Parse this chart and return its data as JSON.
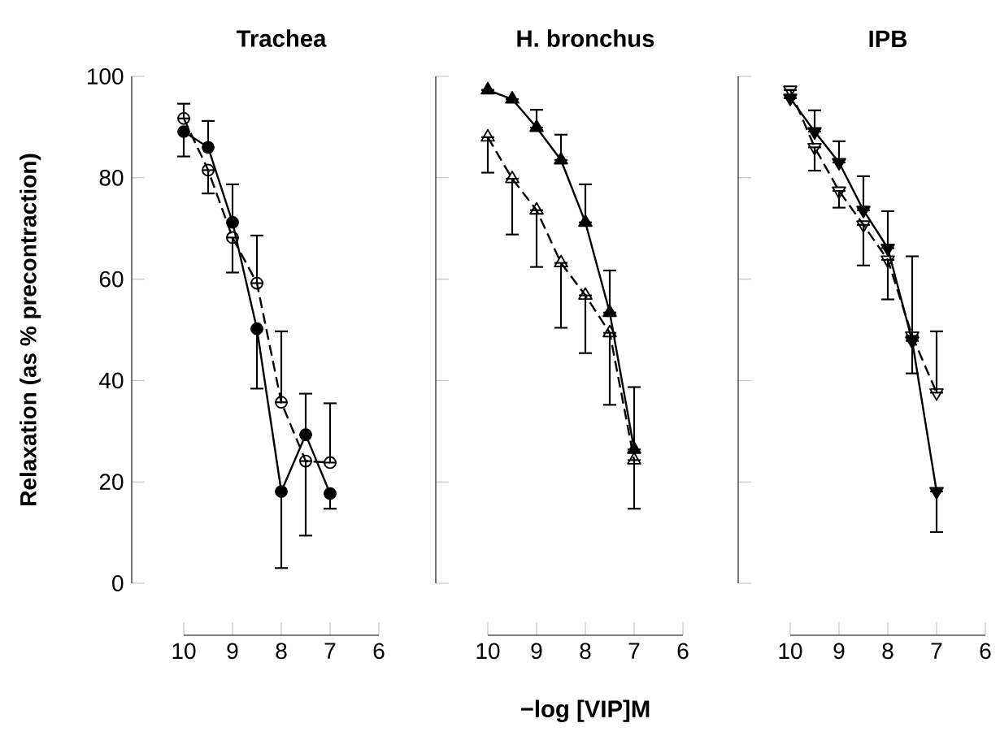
{
  "chart_data": [
    {
      "type": "line",
      "title": "Trachea",
      "ylabel": "Relaxation (as % precontraction)",
      "xlim": [
        10,
        6
      ],
      "xticks": [
        10,
        9,
        8,
        7,
        6
      ],
      "ylim": [
        0,
        100
      ],
      "yticks": [
        0,
        20,
        40,
        60,
        80,
        100
      ],
      "series": [
        {
          "color": "#000000",
          "marker": "circle",
          "line_style": "solid",
          "x": [
            10,
            9.5,
            9,
            8.5,
            8,
            7.5,
            7
          ],
          "values": [
            89.1,
            86,
            71.2,
            50.2,
            18.1,
            29.3,
            17.7
          ],
          "errors": [
            [
              84.2,
              89.1
            ],
            [
              86,
              91.2
            ],
            [
              71.2,
              78.7
            ],
            [
              38.4,
              50.2
            ],
            [
              3,
              18.1
            ],
            [
              29.3,
              37.4
            ],
            [
              14.7,
              17.7
            ]
          ]
        },
        {
          "color": "#000000",
          "marker": "circle_open",
          "line_style": "dashed",
          "x": [
            10,
            9.5,
            9,
            8.5,
            8,
            7.5,
            7
          ],
          "values": [
            91.7,
            81.5,
            68.2,
            59.2,
            35.7,
            24.1,
            23.8
          ],
          "errors": [
            [
              91.7,
              94.6
            ],
            [
              76.9,
              81.5
            ],
            [
              61.3,
              68.2
            ],
            [
              59.2,
              68.6
            ],
            [
              35.7,
              49.7
            ],
            [
              9.4,
              24.1
            ],
            [
              23.8,
              35.5
            ]
          ]
        }
      ]
    },
    {
      "type": "line",
      "title": "H. bronchus",
      "xlabel": "−log [VIP]M",
      "xlim": [
        10,
        6
      ],
      "xticks": [
        10,
        9,
        8,
        7,
        6
      ],
      "ylim": [
        0,
        100
      ],
      "yticks": [
        0,
        20,
        40,
        60,
        80,
        100
      ],
      "tick_labels": "x",
      "series": [
        {
          "color": "#000000",
          "marker": "triangle",
          "line_style": "solid",
          "x": [
            10,
            9.5,
            9,
            8.5,
            8,
            7.5,
            7
          ],
          "values": [
            97.3,
            95.5,
            89.9,
            83.5,
            71.2,
            53.4,
            26.4
          ],
          "errors": [
            null,
            null,
            [
              89.9,
              93.4
            ],
            [
              83.5,
              88.5
            ],
            [
              71.2,
              78.7
            ],
            [
              53.4,
              61.7
            ],
            [
              26.4,
              38.7
            ]
          ]
        },
        {
          "color": "#000000",
          "marker": "triangle_open",
          "line_style": "dashed",
          "x": [
            10,
            9.5,
            9,
            8.5,
            8,
            7.5,
            7
          ],
          "values": [
            88,
            79.8,
            73.6,
            63.2,
            56.8,
            49.4,
            24.3
          ],
          "errors": [
            [
              81,
              88
            ],
            [
              68.8,
              79.8
            ],
            [
              62.4,
              73.6
            ],
            [
              50.4,
              63.2
            ],
            [
              45.4,
              56.8
            ],
            [
              35.2,
              49.4
            ],
            [
              14.7,
              24.3
            ]
          ]
        }
      ]
    },
    {
      "type": "line",
      "title": "IPB",
      "xlim": [
        10,
        6
      ],
      "xticks": [
        10,
        9,
        8,
        7,
        6
      ],
      "ylim": [
        0,
        100
      ],
      "yticks": [
        0,
        20,
        40,
        60,
        80,
        100
      ],
      "tick_labels": "x",
      "series": [
        {
          "color": "#000000",
          "marker": "triangle_down",
          "line_style": "solid",
          "x": [
            10,
            9.5,
            9,
            8.5,
            8,
            7.5,
            7
          ],
          "values": [
            95.7,
            89.1,
            83,
            73.6,
            66.1,
            47.8,
            18.1
          ],
          "errors": [
            null,
            [
              89.1,
              93.3
            ],
            [
              83,
              87.2
            ],
            [
              73.6,
              80.3
            ],
            [
              66.1,
              73.4
            ],
            [
              41.4,
              47.8
            ],
            [
              10.1,
              18.1
            ]
          ]
        },
        {
          "color": "#000000",
          "marker": "triangle_down_open",
          "line_style": "dashed",
          "x": [
            10,
            9.5,
            9,
            8.5,
            8,
            7.5,
            7
          ],
          "values": [
            97.3,
            86,
            77.4,
            70.7,
            63.8,
            48.8,
            37.6
          ],
          "errors": [
            null,
            [
              81.4,
              86
            ],
            [
              74.1,
              77.4
            ],
            [
              62.7,
              70.7
            ],
            [
              56,
              63.8
            ],
            [
              48.8,
              64.5
            ],
            [
              37.6,
              49.7
            ]
          ]
        }
      ]
    }
  ]
}
